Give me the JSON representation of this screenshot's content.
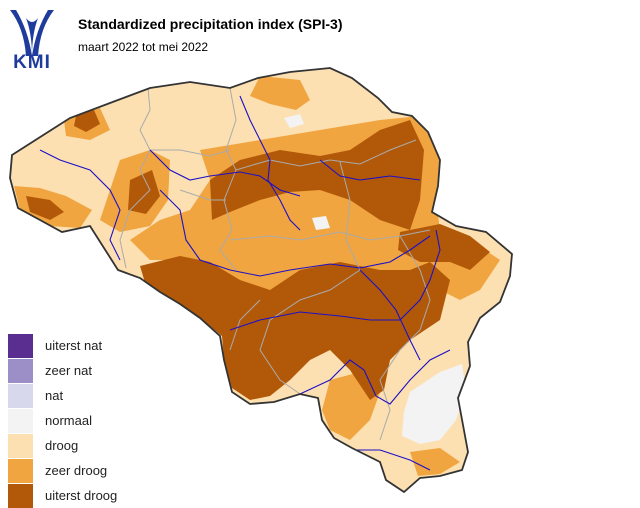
{
  "header": {
    "logo_text": "KMI",
    "title": "Standardized precipitation index (SPI-3)",
    "subtitle": "maart 2022 tot mei 2022"
  },
  "colors": {
    "uiterst_droog": "#b25909",
    "zeer_droog": "#f0a540",
    "droog": "#fde0b2",
    "normaal": "#f3f3f3",
    "water": "#1c10c8",
    "border": "#333333",
    "province": "#aaaaaa"
  },
  "legend": {
    "items": [
      {
        "label": "uiterst nat",
        "color": "#5a2d91"
      },
      {
        "label": "zeer nat",
        "color": "#9c8ec6"
      },
      {
        "label": "nat",
        "color": "#d8d8ec"
      },
      {
        "label": "normaal",
        "color": "#f3f3f3"
      },
      {
        "label": "droog",
        "color": "#fde0b2"
      },
      {
        "label": "zeer droog",
        "color": "#f0a540"
      },
      {
        "label": "uiterst droog",
        "color": "#b25909"
      }
    ]
  }
}
